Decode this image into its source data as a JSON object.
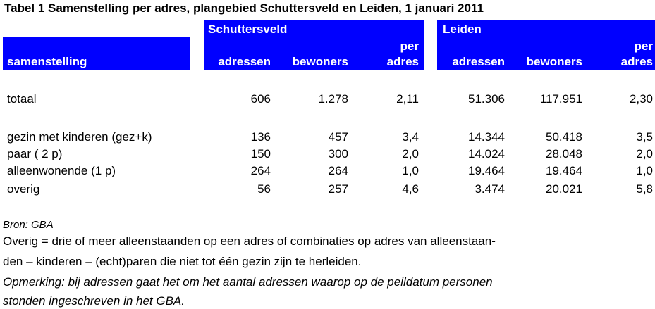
{
  "title": "Tabel 1 Samenstelling per adres, plangebied Schuttersveld en Leiden, 1 januari 2011",
  "header": {
    "group1": "Schuttersveld",
    "group2": "Leiden",
    "row_label": "samenstelling",
    "col_adressen": "adressen",
    "col_bewoners": "bewoners",
    "col_per_1": "per",
    "col_per_2": "adres"
  },
  "rows": [
    {
      "label": "totaal",
      "s_adressen": "606",
      "s_bewoners": "1.278",
      "s_per": "2,11",
      "l_adressen": "51.306",
      "l_bewoners": "117.951",
      "l_per": "2,30"
    },
    {
      "label": "gezin met kinderen (gez+k)",
      "s_adressen": "136",
      "s_bewoners": "457",
      "s_per": "3,4",
      "l_adressen": "14.344",
      "l_bewoners": "50.418",
      "l_per": "3,5"
    },
    {
      "label": "paar ( 2 p)",
      "s_adressen": "150",
      "s_bewoners": "300",
      "s_per": "2,0",
      "l_adressen": "14.024",
      "l_bewoners": "28.048",
      "l_per": "2,0"
    },
    {
      "label": "alleenwonende (1 p)",
      "s_adressen": "264",
      "s_bewoners": "264",
      "s_per": "1,0",
      "l_adressen": "19.464",
      "l_bewoners": "19.464",
      "l_per": "1,0"
    },
    {
      "label": "overig",
      "s_adressen": "56",
      "s_bewoners": "257",
      "s_per": "4,6",
      "l_adressen": "3.474",
      "l_bewoners": "20.021",
      "l_per": "5,8"
    }
  ],
  "notes": {
    "source": "Bron: GBA",
    "overig_1": "Overig = drie of meer alleenstaanden op een adres of combinaties op adres van alleenstaan-",
    "overig_2": "den – kinderen – (echt)paren die niet tot één gezin zijn te herleiden.",
    "remark_1": "Opmerking: bij adressen gaat het om het aantal adressen waarop op de peildatum personen",
    "remark_2": "stonden ingeschreven in het GBA."
  },
  "colors": {
    "header_bg": "#0000ff",
    "header_text": "#ffffff"
  }
}
